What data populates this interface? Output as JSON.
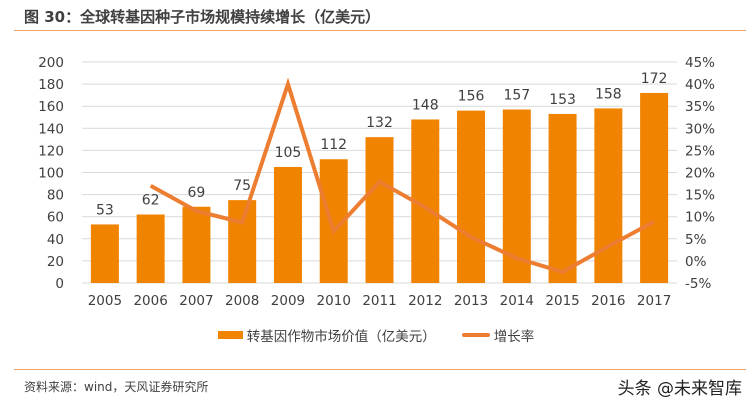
{
  "title": "图 30：全球转基因种子市场规模持续增长（亿美元）",
  "source": "资料来源：wind，天风证券研究所",
  "watermark": "头条 @未来智库",
  "colors": {
    "bar": "#F08300",
    "line": "#ED7D31",
    "accent_rule": "#F0A060"
  },
  "chart_data": {
    "type": "bar+line",
    "categories": [
      "2005",
      "2006",
      "2007",
      "2008",
      "2009",
      "2010",
      "2011",
      "2012",
      "2013",
      "2014",
      "2015",
      "2016",
      "2017"
    ],
    "series": [
      {
        "name": "转基因作物市场价值（亿美元）",
        "type": "bar",
        "axis": "left",
        "values": [
          53,
          62,
          69,
          75,
          105,
          112,
          132,
          148,
          156,
          157,
          153,
          158,
          172
        ]
      },
      {
        "name": "增长率",
        "type": "line",
        "axis": "right",
        "values": [
          null,
          17.0,
          11.3,
          8.7,
          40.0,
          6.7,
          17.9,
          12.1,
          5.4,
          0.6,
          -2.5,
          3.3,
          8.9
        ]
      }
    ],
    "left_axis": {
      "ylim": [
        0,
        200
      ],
      "ticks": [
        "0",
        "20",
        "40",
        "60",
        "80",
        "100",
        "120",
        "140",
        "160",
        "180",
        "200"
      ]
    },
    "right_axis": {
      "ylim": [
        -5,
        45
      ],
      "ticks": [
        "-5%",
        "0%",
        "5%",
        "10%",
        "15%",
        "20%",
        "25%",
        "30%",
        "35%",
        "40%",
        "45%"
      ]
    },
    "grid": true,
    "legend": "bottom",
    "data_labels": true
  }
}
